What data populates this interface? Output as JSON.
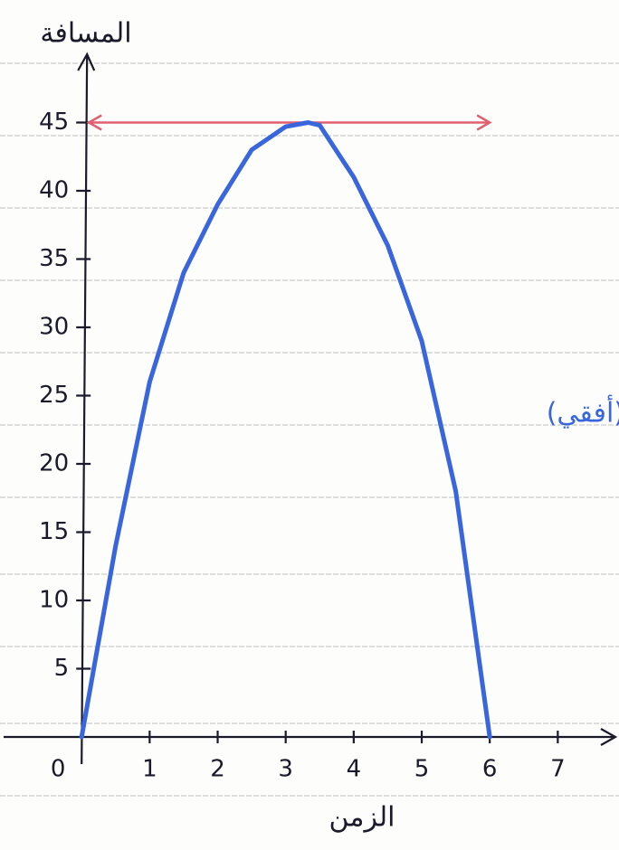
{
  "chart_data": {
    "type": "line",
    "y_label": "المسافة",
    "x_label": "الزمن",
    "annotation": "(أفقي)",
    "x": [
      0,
      0.5,
      1,
      1.5,
      2,
      2.5,
      3,
      3.33,
      3.5,
      4,
      4.5,
      5,
      5.5,
      6
    ],
    "series": [
      {
        "color": "#3a66dd",
        "values": [
          0,
          14,
          26,
          34,
          39,
          43,
          44.7,
          45,
          44.8,
          41,
          36,
          29,
          18,
          0
        ]
      }
    ],
    "reference_line": {
      "value": 45,
      "color": "#e06070"
    },
    "xlim": [
      -1.2,
      7.9
    ],
    "ylim": [
      0,
      50
    ],
    "xticks": [
      0,
      1,
      2,
      3,
      4,
      5,
      6,
      7
    ],
    "yticks": [
      5,
      10,
      15,
      20,
      25,
      30,
      35,
      40,
      45
    ]
  }
}
